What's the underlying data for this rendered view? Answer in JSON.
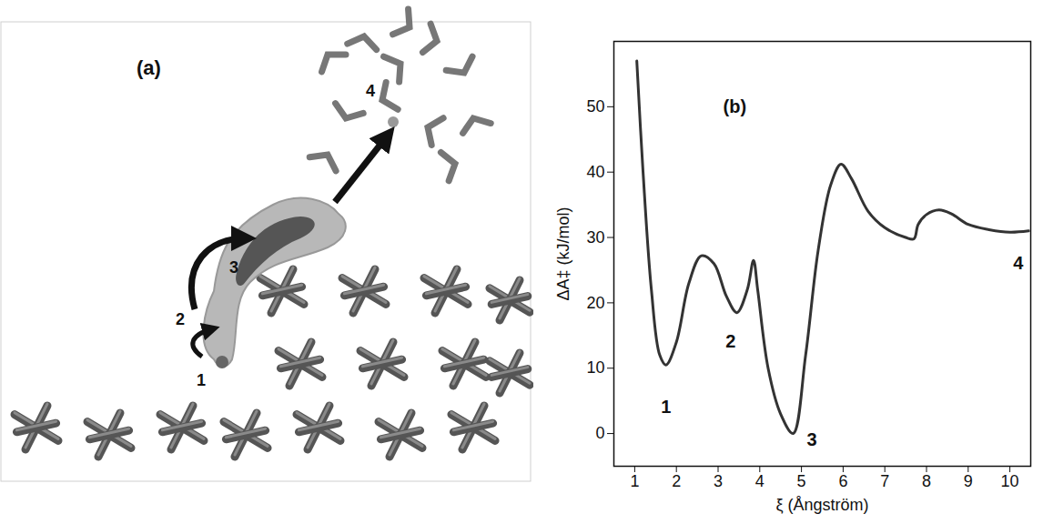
{
  "panel_a": {
    "label": "(a)",
    "site_labels": [
      "1",
      "2",
      "3",
      "4"
    ]
  },
  "chart_data": {
    "type": "line",
    "x_label": "ξ (Ångström)",
    "y_label": "ΔA‡ (kJ/mol)",
    "x": [
      1.05,
      1.2,
      1.4,
      1.6,
      1.75,
      2.0,
      2.3,
      2.6,
      2.9,
      3.2,
      3.45,
      3.7,
      3.85,
      3.95,
      4.2,
      4.5,
      4.8,
      5.1,
      5.4,
      5.7,
      5.95,
      6.2,
      6.6,
      7.0,
      7.5,
      7.7,
      7.8,
      8.0,
      8.3,
      8.6,
      9.0,
      9.5,
      10.0,
      10.45
    ],
    "values": [
      57,
      40,
      22,
      12,
      10.5,
      14,
      23,
      27.2,
      26,
      21,
      18.5,
      22,
      26.5,
      22,
      10,
      3,
      0,
      12,
      28,
      38,
      41.2,
      39,
      34,
      31.5,
      30,
      29.8,
      32,
      33.5,
      34.2,
      33.6,
      32,
      31.2,
      30.8,
      31
    ],
    "color": "#333333",
    "xlim": [
      0.5,
      10.5
    ],
    "ylim": [
      -5,
      60
    ],
    "xticks": [
      1,
      2,
      3,
      4,
      5,
      6,
      7,
      8,
      9,
      10
    ],
    "yticks": [
      0,
      10,
      20,
      30,
      40,
      50
    ],
    "grid": false,
    "annotations": [
      {
        "text": "(b)",
        "x": 3.4,
        "y": 50
      },
      {
        "text": "1",
        "x": 1.75,
        "y": 4
      },
      {
        "text": "2",
        "x": 3.3,
        "y": 14
      },
      {
        "text": "3",
        "x": 5.25,
        "y": -1
      },
      {
        "text": "4",
        "x": 10.2,
        "y": 26
      }
    ]
  }
}
